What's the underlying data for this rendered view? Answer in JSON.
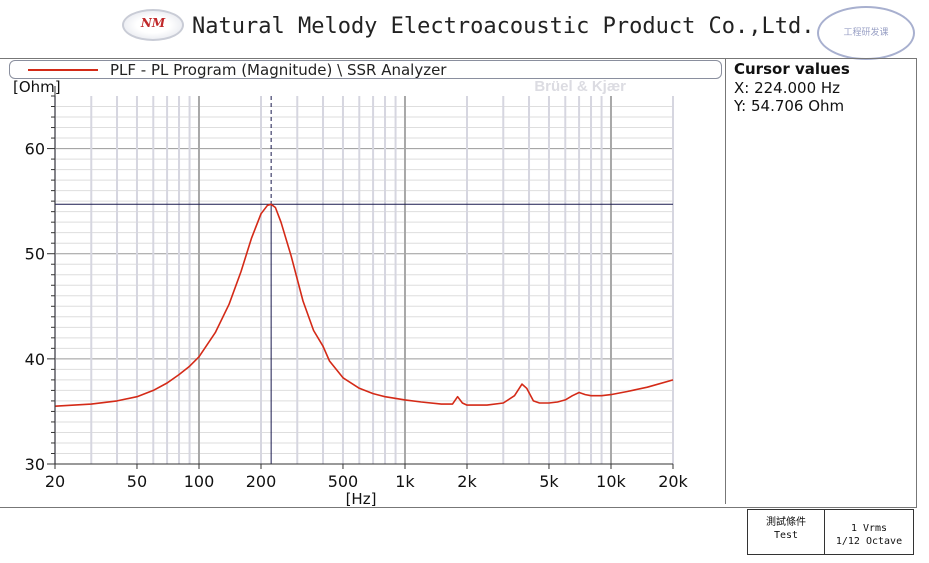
{
  "header": {
    "logo_text": "NM",
    "company_name": "Natural Melody Electroacoustic Product Co.,Ltd.",
    "seal_text": "工程研发课"
  },
  "legend": {
    "label": "PLF - PL Program (Magnitude) \\ SSR Analyzer"
  },
  "watermark": "Brüel & Kjær",
  "cursor_panel": {
    "title": "Cursor values",
    "x_label": "X: 224.000 Hz",
    "y_label": "Y: 54.706 Ohm"
  },
  "test_conditions": {
    "label_cn": "測試條件",
    "label_en": "Test",
    "level": "1 Vrms",
    "resolution": "1/12 Octave"
  },
  "chart_data": {
    "type": "line",
    "title": "",
    "xlabel": "[Hz]",
    "ylabel": "[Ohm]",
    "x_scale": "log",
    "xlim": [
      20,
      20000
    ],
    "ylim": [
      30,
      65
    ],
    "x_ticks": [
      20,
      50,
      100,
      200,
      500,
      1000,
      2000,
      5000,
      10000,
      20000
    ],
    "x_tick_labels": [
      "20",
      "50",
      "100",
      "200",
      "500",
      "1k",
      "2k",
      "5k",
      "10k",
      "20k"
    ],
    "y_ticks": [
      30,
      40,
      50,
      60
    ],
    "y_tick_labels": [
      "30",
      "40",
      "50",
      "60"
    ],
    "grid": true,
    "colors": {
      "series": "#d42a17",
      "cursor": "#1a1a4e"
    },
    "cursor": {
      "x": 224,
      "y": 54.706
    },
    "series": [
      {
        "x": [
          20,
          30,
          40,
          50,
          60,
          70,
          80,
          90,
          100,
          120,
          140,
          160,
          180,
          200,
          215,
          224,
          235,
          250,
          280,
          320,
          360,
          400,
          430,
          500,
          600,
          700,
          800,
          1000,
          1200,
          1500,
          1700,
          1800,
          1900,
          2000,
          2500,
          3000,
          3400,
          3700,
          3900,
          4200,
          4500,
          5000,
          5500,
          6000,
          6500,
          7000,
          7500,
          8000,
          9000,
          10000,
          12000,
          15000,
          20000
        ],
        "values": [
          35.5,
          35.7,
          36.0,
          36.4,
          37.0,
          37.7,
          38.5,
          39.3,
          40.2,
          42.5,
          45.2,
          48.3,
          51.5,
          53.8,
          54.6,
          54.7,
          54.4,
          53.0,
          49.8,
          45.5,
          42.7,
          41.2,
          39.8,
          38.2,
          37.2,
          36.7,
          36.4,
          36.1,
          35.9,
          35.7,
          35.7,
          36.4,
          35.8,
          35.6,
          35.6,
          35.8,
          36.5,
          37.6,
          37.2,
          36.0,
          35.8,
          35.8,
          35.9,
          36.1,
          36.5,
          36.8,
          36.6,
          36.5,
          36.5,
          36.6,
          36.9,
          37.3,
          38.0
        ]
      }
    ]
  }
}
